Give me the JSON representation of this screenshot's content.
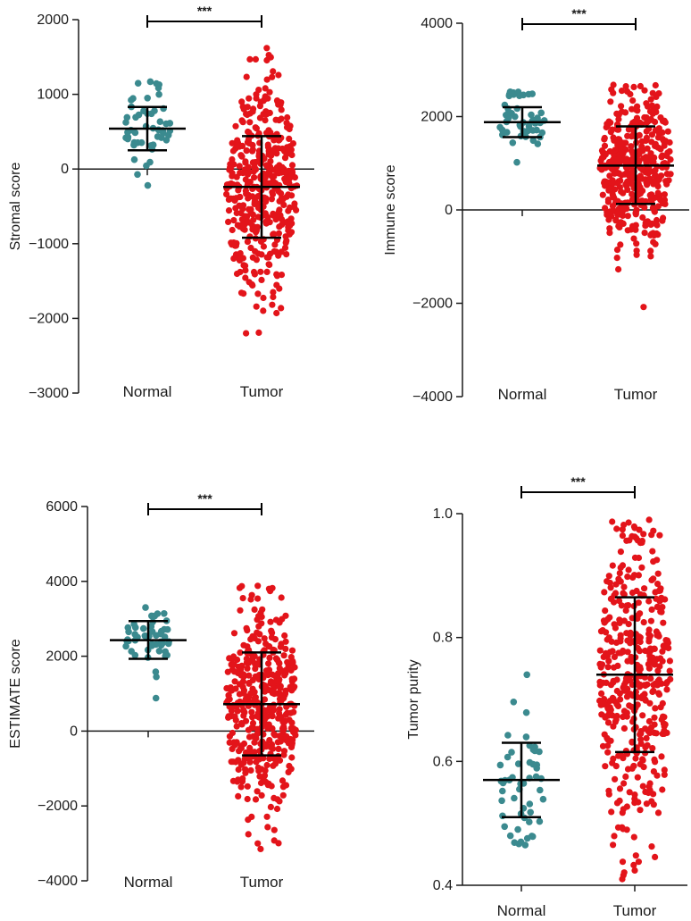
{
  "figure": {
    "background": "#ffffff"
  },
  "colors": {
    "normal": "#3b8a8f",
    "tumor": "#e3141a",
    "axis": "#1a1a1a",
    "error_bar": "#000000"
  },
  "chart_data": [
    {
      "type": "scatter",
      "subtype": "dot-plot-with-mean-sd",
      "ylabel": "Stromal score",
      "categories": [
        "Normal",
        "Tumor"
      ],
      "ylim": [
        -3000,
        2000
      ],
      "yticks": [
        2000,
        1000,
        0,
        -1000,
        -2000,
        -3000
      ],
      "ytick_labels": [
        "2000",
        "1000",
        "0",
        "−1000",
        "−2000",
        "−3000"
      ],
      "zero_line": true,
      "significance": "***",
      "series": [
        {
          "name": "Normal",
          "mean": 540,
          "sd_low": 250,
          "sd_high": 830,
          "min": -220,
          "max": 1170,
          "n": 52
        },
        {
          "name": "Tumor",
          "mean": -240,
          "sd_low": -920,
          "sd_high": 440,
          "min": -2200,
          "max": 1620,
          "n": 420
        }
      ]
    },
    {
      "type": "scatter",
      "subtype": "dot-plot-with-mean-sd",
      "ylabel": "Immune score",
      "categories": [
        "Normal",
        "Tumor"
      ],
      "ylim": [
        -4000,
        4000
      ],
      "yticks": [
        4000,
        2000,
        0,
        -2000,
        -4000
      ],
      "ytick_labels": [
        "4000",
        "2000",
        "0",
        "−2000",
        "−4000"
      ],
      "zero_line": true,
      "significance": "***",
      "series": [
        {
          "name": "Normal",
          "mean": 1880,
          "sd_low": 1560,
          "sd_high": 2200,
          "min": 1020,
          "max": 2530,
          "n": 52
        },
        {
          "name": "Tumor",
          "mean": 950,
          "sd_low": 130,
          "sd_high": 1790,
          "min": -2080,
          "max": 2680,
          "n": 420
        }
      ]
    },
    {
      "type": "scatter",
      "subtype": "dot-plot-with-mean-sd",
      "ylabel": "ESTIMATE score",
      "categories": [
        "Normal",
        "Tumor"
      ],
      "ylim": [
        -4000,
        6000
      ],
      "yticks": [
        6000,
        4000,
        2000,
        0,
        -2000,
        -4000
      ],
      "ytick_labels": [
        "6000",
        "4000",
        "2000",
        "0",
        "−2000",
        "−4000"
      ],
      "zero_line": true,
      "significance": "***",
      "series": [
        {
          "name": "Normal",
          "mean": 2430,
          "sd_low": 1930,
          "sd_high": 2940,
          "min": 880,
          "max": 3300,
          "n": 52
        },
        {
          "name": "Tumor",
          "mean": 720,
          "sd_low": -650,
          "sd_high": 2100,
          "min": -3150,
          "max": 3880,
          "n": 420
        }
      ]
    },
    {
      "type": "scatter",
      "subtype": "dot-plot-with-mean-sd",
      "ylabel": "Tumor purity",
      "categories": [
        "Normal",
        "Tumor"
      ],
      "ylim": [
        0.4,
        1.0
      ],
      "yticks": [
        1.0,
        0.8,
        0.6,
        0.4
      ],
      "ytick_labels": [
        "1.0",
        "0.8",
        "0.6",
        "0.4"
      ],
      "zero_line": false,
      "significance": "***",
      "series": [
        {
          "name": "Normal",
          "mean": 0.57,
          "sd_low": 0.51,
          "sd_high": 0.63,
          "min": 0.465,
          "max": 0.74,
          "n": 52
        },
        {
          "name": "Tumor",
          "mean": 0.74,
          "sd_low": 0.615,
          "sd_high": 0.865,
          "min": 0.41,
          "max": 0.99,
          "n": 420
        }
      ]
    }
  ]
}
